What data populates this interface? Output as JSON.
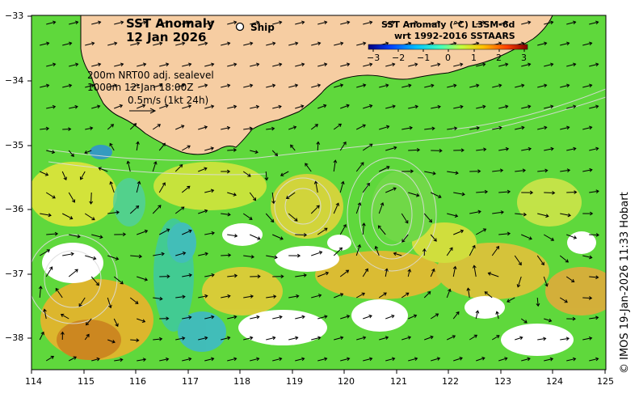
{
  "title": {
    "line1": "SST Anomaly",
    "line2": "12 Jan 2026"
  },
  "ship_label": "Ship",
  "legend": {
    "title_line1": "SST Anomaly (°C) L3SM-6d",
    "title_line2": "wrt 1992-2016 SSTAARS",
    "ticks": [
      "−3",
      "−2",
      "−1",
      "0",
      "1",
      "2",
      "3"
    ],
    "colors": [
      "#00007f",
      "#0040ff",
      "#00c0ff",
      "#40ffbf",
      "#c0ff40",
      "#ffc000",
      "#ff4000",
      "#7f0000"
    ]
  },
  "annotations": {
    "line1": "200m  NRT00 adj. sealevel",
    "line2": "1000m 12-Jan 18:00Z",
    "line3": "0.5m/s (1kt 24h)"
  },
  "x_axis": {
    "ticks": [
      "114",
      "115",
      "116",
      "117",
      "118",
      "119",
      "120",
      "121",
      "122",
      "123",
      "124",
      "125"
    ]
  },
  "y_axis": {
    "ticks": [
      "−33",
      "−34",
      "−35",
      "−36",
      "−37",
      "−38"
    ]
  },
  "credit": "© IMOS 19-Jan-2026 11:33 Hobart",
  "colors": {
    "land": "#f6cda2",
    "ocean_base": "#5fd83c",
    "coast": "#000000"
  }
}
